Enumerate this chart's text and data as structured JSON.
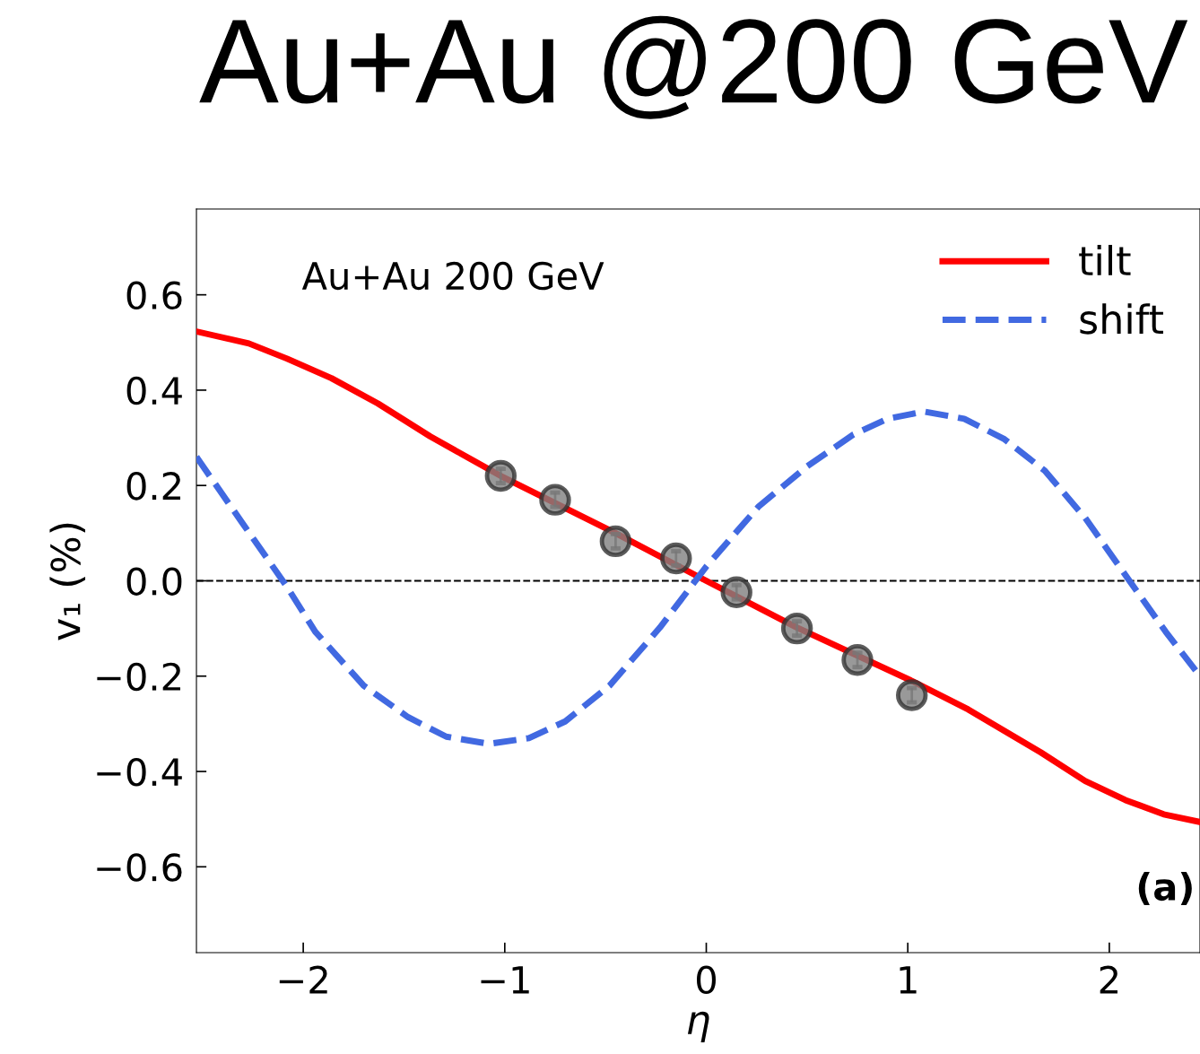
{
  "chart_data": {
    "type": "line",
    "title": "Au+Au @200 GeV",
    "xlabel": "η",
    "ylabel": "v₁ (%)",
    "xlim": [
      -2.53,
      2.45
    ],
    "ylim": [
      -0.78,
      0.78
    ],
    "xticks": [
      {
        "value": -2,
        "label": "−2"
      },
      {
        "value": -1,
        "label": "−1"
      },
      0,
      1,
      2
    ],
    "yticks": [
      {
        "value": -0.6,
        "label": "−0.6"
      },
      {
        "value": -0.4,
        "label": "−0.4"
      },
      {
        "value": -0.2,
        "label": "−0.2"
      },
      {
        "value": 0.0,
        "label": "0.0"
      },
      0.2,
      0.4,
      0.6
    ],
    "grid": false,
    "legend": "top right",
    "ref_lines": [
      {
        "axis": "y",
        "value": 0,
        "color": "#000000",
        "line_style": "dashed"
      }
    ],
    "annotations": [
      "Au+Au 200 GeV",
      "(a)"
    ],
    "series": [
      {
        "name": "tilt",
        "color": "#ff0000",
        "line_style": "solid",
        "marker": "none",
        "x": [
          -2.53,
          -2.27,
          -2.08,
          -1.86,
          -1.63,
          -1.37,
          -1.02,
          -0.45,
          0,
          0.45,
          1.02,
          1.3,
          1.66,
          1.88,
          2.08,
          2.27,
          2.45
        ],
        "values": [
          0.523,
          0.498,
          0.466,
          0.425,
          0.372,
          0.303,
          0.22,
          0.1,
          0,
          -0.098,
          -0.21,
          -0.27,
          -0.36,
          -0.42,
          -0.46,
          -0.49,
          -0.506
        ]
      },
      {
        "name": "shift",
        "color": "#4169e1",
        "line_style": "dashed",
        "marker": "none",
        "x": [
          -2.53,
          -2.3,
          -2.08,
          -1.94,
          -1.7,
          -1.48,
          -1.29,
          -1.08,
          -0.88,
          -0.7,
          -0.48,
          -0.23,
          0,
          0.26,
          0.5,
          0.73,
          0.9,
          1.08,
          1.28,
          1.48,
          1.68,
          1.88,
          2.1,
          2.28,
          2.45
        ],
        "values": [
          0.26,
          0.12,
          -0.013,
          -0.107,
          -0.22,
          -0.286,
          -0.327,
          -0.342,
          -0.33,
          -0.295,
          -0.22,
          -0.098,
          0.03,
          0.156,
          0.24,
          0.307,
          0.34,
          0.355,
          0.34,
          0.297,
          0.231,
          0.132,
          0.0,
          -0.107,
          -0.2
        ]
      },
      {
        "type": "scatter",
        "color": "#808080",
        "marker": "circle",
        "x": [
          -1.02,
          -0.75,
          -0.45,
          -0.15,
          0.15,
          0.45,
          0.75,
          1.02
        ],
        "values": [
          0.22,
          0.17,
          0.083,
          0.047,
          -0.024,
          -0.1,
          -0.166,
          -0.24
        ],
        "errors": [
          0.015,
          0.015,
          0.015,
          0.015,
          0.015,
          0.015,
          0.015,
          0.015
        ]
      }
    ]
  }
}
